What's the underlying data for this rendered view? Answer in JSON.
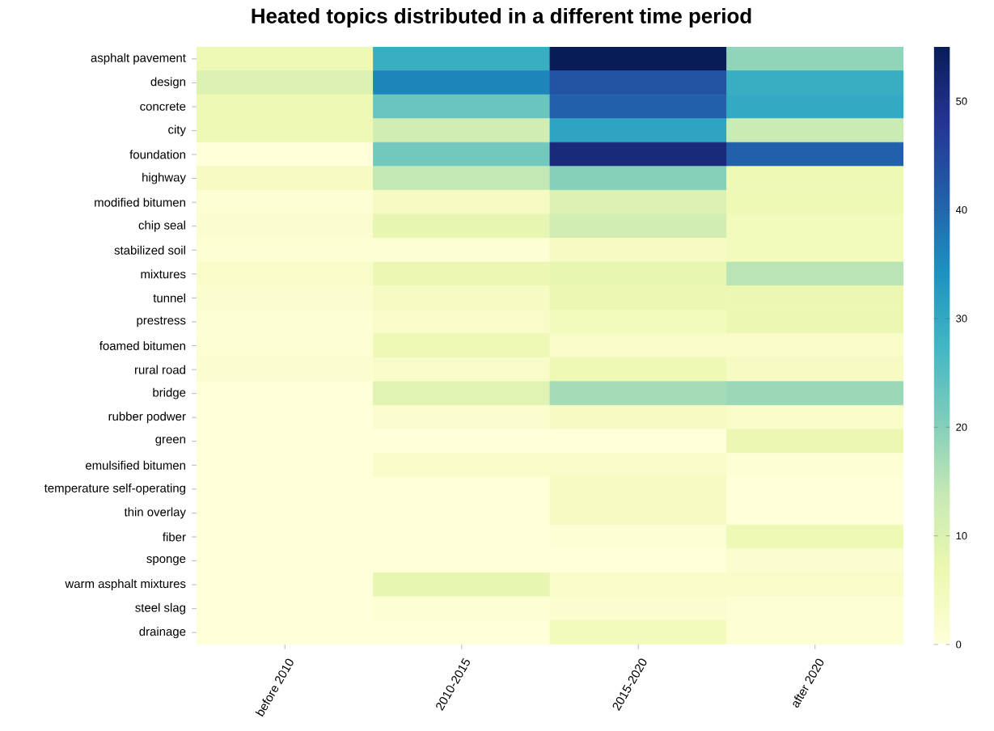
{
  "chart_data": {
    "type": "heatmap",
    "title": "Heated topics distributed in a different time period",
    "categories": [
      "before 2010",
      "2010-2015",
      "2015-2020",
      "after 2020"
    ],
    "y_categories": [
      "asphalt pavement",
      "design",
      "concrete",
      "city",
      "foundation",
      "highway",
      "modified bitumen",
      "chip seal",
      "stabilized soil",
      "mixtures",
      "tunnel",
      "prestress",
      "foamed bitumen",
      "rural road",
      "bridge",
      "rubber podwer",
      "green",
      "emulsified bitumen",
      "temperature self-operating",
      "thin overlay",
      "fiber",
      "sponge",
      "warm asphalt mixtures",
      "steel slag",
      "drainage"
    ],
    "cells": [
      [
        6,
        29,
        55,
        19
      ],
      [
        10,
        36,
        43,
        29
      ],
      [
        6,
        23,
        41,
        30
      ],
      [
        6,
        12,
        31,
        13
      ],
      [
        0,
        22,
        51,
        41
      ],
      [
        4,
        14,
        20,
        6
      ],
      [
        1,
        4,
        10,
        6
      ],
      [
        2,
        8,
        12,
        5
      ],
      [
        1,
        1,
        4,
        5
      ],
      [
        3,
        7,
        8,
        15
      ],
      [
        2,
        4,
        7,
        7
      ],
      [
        1,
        3,
        5,
        7
      ],
      [
        1,
        6,
        3,
        3
      ],
      [
        2,
        3,
        6,
        4
      ],
      [
        0,
        9,
        17,
        18
      ],
      [
        0,
        2,
        4,
        3
      ],
      [
        0,
        0,
        0,
        7
      ],
      [
        0,
        3,
        3,
        1
      ],
      [
        0,
        0,
        4,
        0
      ],
      [
        0,
        0,
        4,
        0
      ],
      [
        0,
        0,
        1,
        6
      ],
      [
        0,
        0,
        0,
        2
      ],
      [
        0,
        8,
        3,
        3
      ],
      [
        0,
        1,
        2,
        1
      ],
      [
        0,
        0,
        5,
        1
      ]
    ],
    "clim": [
      0,
      55
    ],
    "cticks": [
      0,
      10,
      20,
      30,
      40,
      50
    ]
  }
}
